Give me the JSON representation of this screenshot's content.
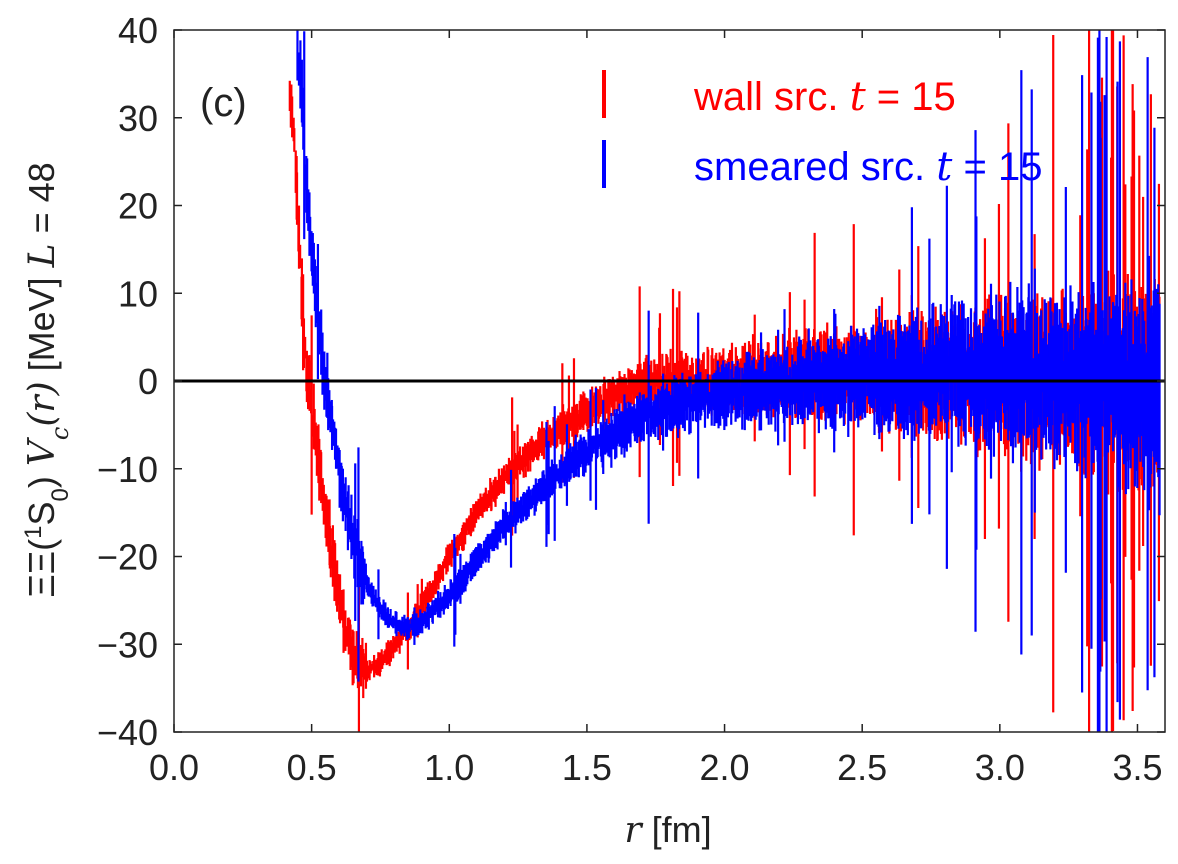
{
  "chart_data": {
    "type": "scatter",
    "panel_label": "(c)",
    "xlabel": {
      "var": "r",
      "unit": " [fm]"
    },
    "ylabel": {
      "prefix": "ΞΞ(",
      "sup": "1",
      "state": "S",
      "sub": "0",
      "mid": ") ",
      "var": "V",
      "var_sub": "c",
      "arg": "(r)",
      "unit": " [MeV] ",
      "lvar": "L",
      "lval": " = 48"
    },
    "xlim": [
      0.0,
      3.6
    ],
    "ylim": [
      -40,
      40
    ],
    "xticks": [
      "0.0",
      "0.5",
      "1.0",
      "1.5",
      "2.0",
      "2.5",
      "3.0",
      "3.5"
    ],
    "yticks": [
      "−40",
      "−30",
      "−20",
      "−10",
      "0",
      "10",
      "20",
      "30",
      "40"
    ],
    "zero_line": 0,
    "grid": false,
    "legend_position": "top-right",
    "series": [
      {
        "name": "wall src.",
        "name_var": "t",
        "name_val": " = 15",
        "color": "#ff0000",
        "offset_r": 0.0,
        "points": [
          [
            0.42,
            33
          ],
          [
            0.44,
            26
          ],
          [
            0.45,
            19
          ],
          [
            0.46,
            12
          ],
          [
            0.47,
            6
          ],
          [
            0.48,
            2
          ],
          [
            0.5,
            -3
          ],
          [
            0.52,
            -8
          ],
          [
            0.55,
            -15
          ],
          [
            0.58,
            -21
          ],
          [
            0.6,
            -25
          ],
          [
            0.63,
            -29
          ],
          [
            0.66,
            -31.5
          ],
          [
            0.7,
            -33
          ],
          [
            0.74,
            -32.5
          ],
          [
            0.78,
            -31
          ],
          [
            0.82,
            -29.5
          ],
          [
            0.86,
            -28
          ],
          [
            0.9,
            -25.5
          ],
          [
            0.95,
            -23
          ],
          [
            1.0,
            -20
          ],
          [
            1.05,
            -17.5
          ],
          [
            1.1,
            -15
          ],
          [
            1.15,
            -13
          ],
          [
            1.2,
            -11
          ],
          [
            1.25,
            -9.5
          ],
          [
            1.3,
            -8
          ],
          [
            1.35,
            -6.5
          ],
          [
            1.4,
            -5.5
          ],
          [
            1.45,
            -4.5
          ],
          [
            1.5,
            -3.5
          ],
          [
            1.55,
            -2.5
          ],
          [
            1.6,
            -1.5
          ],
          [
            1.65,
            -1
          ],
          [
            1.7,
            -0.5
          ],
          [
            1.8,
            0
          ],
          [
            1.9,
            0
          ],
          [
            2.0,
            0
          ],
          [
            2.1,
            0.5
          ],
          [
            2.2,
            0.5
          ],
          [
            2.3,
            1
          ],
          [
            2.4,
            1
          ],
          [
            2.5,
            1
          ],
          [
            2.6,
            1
          ],
          [
            2.7,
            1
          ],
          [
            2.8,
            0.5
          ],
          [
            2.9,
            0.5
          ],
          [
            3.0,
            0.5
          ],
          [
            3.1,
            0
          ],
          [
            3.2,
            0
          ],
          [
            3.3,
            0
          ],
          [
            3.4,
            0
          ],
          [
            3.5,
            0
          ],
          [
            3.58,
            0
          ]
        ]
      },
      {
        "name": "smeared src.",
        "name_var": "t",
        "name_val": " = 15",
        "color": "#0000ff",
        "offset_r": 0.0,
        "points": [
          [
            0.45,
            38
          ],
          [
            0.47,
            30
          ],
          [
            0.48,
            23
          ],
          [
            0.5,
            15
          ],
          [
            0.52,
            8
          ],
          [
            0.54,
            2
          ],
          [
            0.56,
            -2
          ],
          [
            0.58,
            -6
          ],
          [
            0.6,
            -10
          ],
          [
            0.63,
            -15
          ],
          [
            0.66,
            -19
          ],
          [
            0.7,
            -23
          ],
          [
            0.74,
            -25.5
          ],
          [
            0.78,
            -27
          ],
          [
            0.82,
            -28
          ],
          [
            0.86,
            -28
          ],
          [
            0.9,
            -27.5
          ],
          [
            0.95,
            -26
          ],
          [
            1.0,
            -24.5
          ],
          [
            1.05,
            -22.5
          ],
          [
            1.1,
            -20.5
          ],
          [
            1.15,
            -18.5
          ],
          [
            1.2,
            -16.5
          ],
          [
            1.25,
            -15
          ],
          [
            1.3,
            -13.5
          ],
          [
            1.35,
            -12
          ],
          [
            1.4,
            -10.5
          ],
          [
            1.45,
            -9
          ],
          [
            1.5,
            -8
          ],
          [
            1.55,
            -7
          ],
          [
            1.6,
            -6
          ],
          [
            1.65,
            -5
          ],
          [
            1.7,
            -4
          ],
          [
            1.8,
            -3
          ],
          [
            1.9,
            -2
          ],
          [
            2.0,
            -1.5
          ],
          [
            2.1,
            -1
          ],
          [
            2.2,
            -0.5
          ],
          [
            2.3,
            0
          ],
          [
            2.4,
            0
          ],
          [
            2.5,
            0.5
          ],
          [
            2.6,
            0.5
          ],
          [
            2.7,
            0.5
          ],
          [
            2.8,
            1
          ],
          [
            2.9,
            1
          ],
          [
            3.0,
            1
          ],
          [
            3.1,
            0.5
          ],
          [
            3.2,
            0.5
          ],
          [
            3.3,
            0
          ],
          [
            3.4,
            0
          ],
          [
            3.5,
            -0.5
          ],
          [
            3.58,
            -0.5
          ]
        ]
      }
    ]
  }
}
